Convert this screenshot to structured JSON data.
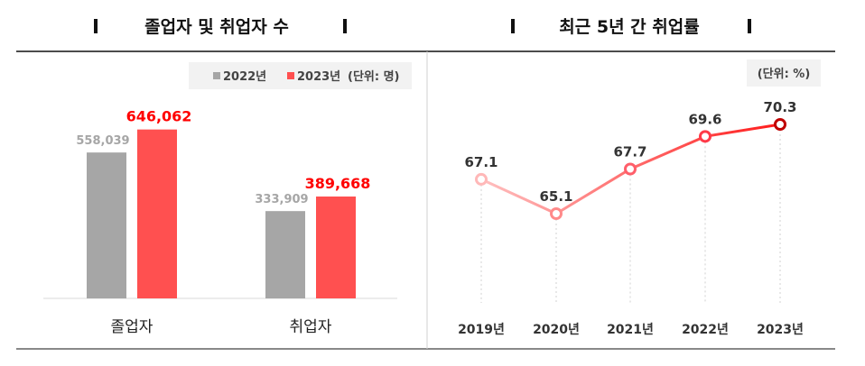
{
  "chart_data": [
    {
      "type": "bar",
      "title": "졸업자 및 취업자 수",
      "unit_label": "(단위: 명)",
      "categories": [
        "졸업자",
        "취업자"
      ],
      "series": [
        {
          "name": "2022년",
          "values": [
            558039,
            333909
          ],
          "labels": [
            "558,039",
            "333,909"
          ],
          "color": "#a6a6a6",
          "label_color": "#a6a6a6"
        },
        {
          "name": "2023년",
          "values": [
            646062,
            389668
          ],
          "labels": [
            "646,062",
            "389,668"
          ],
          "color": "#ff5050",
          "label_color": "#ff0000"
        }
      ],
      "ylim": [
        0,
        1000000
      ],
      "grid": false,
      "legend": "top-right"
    },
    {
      "type": "line",
      "title": "최근 5년 간 취업률",
      "unit_label": "(단위: %)",
      "categories": [
        "2019년",
        "2020년",
        "2021년",
        "2022년",
        "2023년"
      ],
      "values": [
        67.1,
        65.1,
        67.7,
        69.6,
        70.3
      ],
      "labels": [
        "67.1",
        "65.1",
        "67.7",
        "69.6",
        "70.3"
      ],
      "marker_colors": [
        "#ffb8b8",
        "#ff8a8a",
        "#ff5e6a",
        "#ff3a48",
        "#c00000"
      ],
      "line_color_start": "#ffc0c0",
      "line_color_end": "#ff1a1a",
      "grid": false
    }
  ]
}
